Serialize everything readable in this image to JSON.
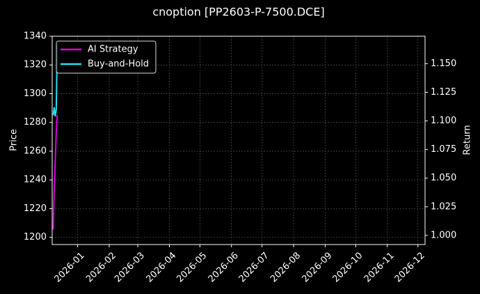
{
  "chart_data": {
    "type": "line",
    "title": "cnoption [PP2603-P-7500.DCE]",
    "y_label": "Price",
    "y2_label": "Return",
    "x": [
      "2025-12-08",
      "2025-12-09",
      "2025-12-10",
      "2025-12-11",
      "2025-12-12"
    ],
    "series": [
      {
        "name": "AI Strategy",
        "color": "#e000e0",
        "axis": "y2",
        "values": [
          1.005,
          1.04,
          1.064,
          1.09,
          1.105
        ]
      },
      {
        "name": "Buy-and-Hold",
        "color": "#22e0f0",
        "axis": "y2",
        "values": [
          1.105,
          1.112,
          1.104,
          1.11,
          1.167
        ]
      }
    ],
    "xlim": [
      "2025-12-07",
      "2026-12-08"
    ],
    "xticks": [
      "2026-01",
      "2026-02",
      "2026-03",
      "2026-04",
      "2026-05",
      "2026-06",
      "2026-07",
      "2026-08",
      "2026-09",
      "2026-10",
      "2026-11",
      "2026-12"
    ],
    "ylim": [
      1195,
      1340
    ],
    "yticks": [
      1200,
      1220,
      1240,
      1260,
      1280,
      1300,
      1320,
      1340
    ],
    "y2lim": [
      0.992,
      1.174
    ],
    "y2ticks": [
      {
        "value": 1,
        "label": "1.000"
      },
      {
        "value": 1.025,
        "label": "1.025"
      },
      {
        "value": 1.05,
        "label": "1.050"
      },
      {
        "value": 1.075,
        "label": "1.075"
      },
      {
        "value": 1.1,
        "label": "1.100"
      },
      {
        "value": 1.125,
        "label": "1.125"
      },
      {
        "value": 1.15,
        "label": "1.150"
      }
    ],
    "grid": true,
    "legend": "upper-left"
  }
}
